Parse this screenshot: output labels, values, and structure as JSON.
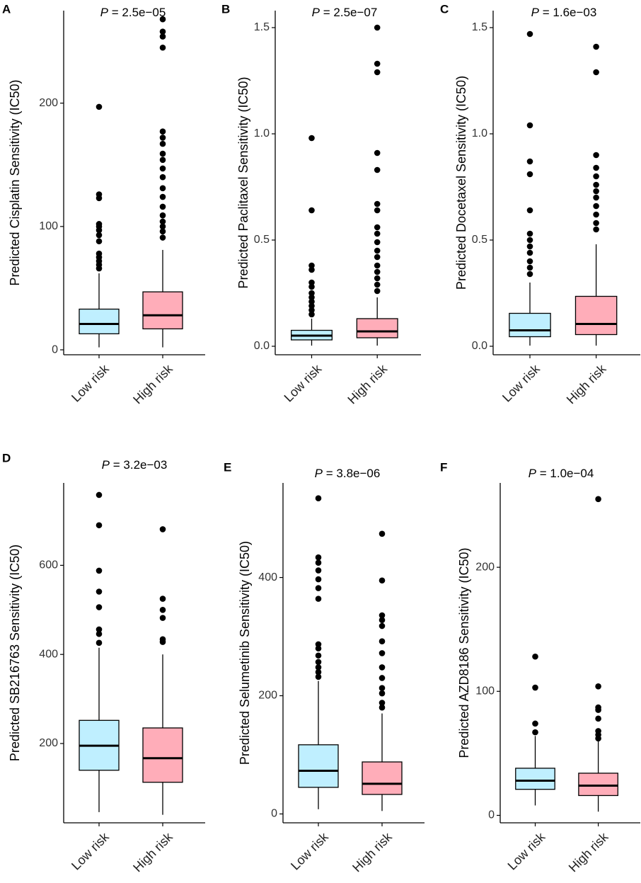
{
  "figure": {
    "low_color": "#bfefff",
    "high_color": "#ffadb9",
    "panels": [
      "A",
      "B",
      "C",
      "D",
      "E",
      "F"
    ]
  },
  "chart_data": [
    {
      "panel": "A",
      "type": "box",
      "title_p": "P",
      "title_value": " = 2.5e−05",
      "ylabel": "Predicted Cisplatin Sensitivity (IC50)",
      "categories": [
        "Low risk",
        "High risk"
      ],
      "ylim": [
        -4,
        275
      ],
      "yticks": [
        0,
        100,
        200
      ],
      "ytick_labels": [
        "0",
        "100",
        "200"
      ],
      "boxes": [
        {
          "name": "Low risk",
          "whisker_low": 2,
          "q1": 13,
          "median": 21,
          "q3": 33,
          "whisker_high": 62,
          "outliers": [
            66,
            69,
            72,
            75,
            78,
            88,
            93,
            97,
            100,
            102,
            123,
            126,
            197
          ]
        },
        {
          "name": "High risk",
          "whisker_low": 2,
          "q1": 17,
          "median": 28,
          "q3": 47,
          "whisker_high": 81,
          "outliers": [
            91,
            96,
            100,
            104,
            109,
            116,
            124,
            131,
            140,
            147,
            154,
            159,
            167,
            172,
            177,
            245,
            254,
            258,
            268
          ]
        }
      ]
    },
    {
      "panel": "B",
      "type": "box",
      "title_p": "P",
      "title_value": " = 2.5e−07",
      "ylabel": "Predicted Paclitaxel Sensitivity (IC50)",
      "categories": [
        "Low risk",
        "High risk"
      ],
      "ylim": [
        -0.04,
        1.58
      ],
      "yticks": [
        0,
        0.5,
        1,
        1.5
      ],
      "ytick_labels": [
        "0.0",
        "0.5",
        "1.0",
        "1.5"
      ],
      "boxes": [
        {
          "name": "Low risk",
          "whisker_low": 0.003,
          "q1": 0.03,
          "median": 0.05,
          "q3": 0.075,
          "whisker_high": 0.13,
          "outliers": [
            0.15,
            0.17,
            0.19,
            0.21,
            0.23,
            0.25,
            0.28,
            0.3,
            0.36,
            0.38,
            0.64,
            0.98
          ]
        },
        {
          "name": "High risk",
          "whisker_low": 0.003,
          "q1": 0.04,
          "median": 0.07,
          "q3": 0.13,
          "whisker_high": 0.23,
          "outliers": [
            0.26,
            0.29,
            0.32,
            0.35,
            0.38,
            0.42,
            0.45,
            0.49,
            0.53,
            0.56,
            0.64,
            0.67,
            0.83,
            0.91,
            1.29,
            1.33,
            1.5
          ]
        }
      ]
    },
    {
      "panel": "C",
      "type": "box",
      "title_p": "P",
      "title_value": " = 1.6e−03",
      "ylabel": "Predicted Docetaxel Sensitivity (IC50)",
      "categories": [
        "Low risk",
        "High risk"
      ],
      "ylim": [
        -0.04,
        1.58
      ],
      "yticks": [
        0,
        0.5,
        1,
        1.5
      ],
      "ytick_labels": [
        "0.0",
        "0.5",
        "1.0",
        "1.5"
      ],
      "boxes": [
        {
          "name": "Low risk",
          "whisker_low": 0.003,
          "q1": 0.045,
          "median": 0.075,
          "q3": 0.155,
          "whisker_high": 0.3,
          "outliers": [
            0.34,
            0.37,
            0.4,
            0.44,
            0.47,
            0.5,
            0.53,
            0.64,
            0.81,
            0.87,
            1.04,
            1.47
          ]
        },
        {
          "name": "High risk",
          "whisker_low": 0.003,
          "q1": 0.055,
          "median": 0.105,
          "q3": 0.235,
          "whisker_high": 0.48,
          "outliers": [
            0.55,
            0.58,
            0.62,
            0.66,
            0.7,
            0.73,
            0.76,
            0.8,
            0.84,
            0.9,
            1.29,
            1.41
          ]
        }
      ]
    },
    {
      "panel": "D",
      "type": "box",
      "title_p": "P",
      "title_value": " = 3.2e−03",
      "ylabel": "Predicted SB216763 Sensitivity (IC50)",
      "categories": [
        "Low risk",
        "High risk"
      ],
      "ylim": [
        22,
        785
      ],
      "yticks": [
        200,
        400,
        600
      ],
      "ytick_labels": [
        "200",
        "400",
        "600"
      ],
      "boxes": [
        {
          "name": "Low risk",
          "whisker_low": 46,
          "q1": 140,
          "median": 195,
          "q3": 252,
          "whisker_high": 415,
          "outliers": [
            426,
            446,
            456,
            506,
            541,
            588,
            690,
            758
          ]
        },
        {
          "name": "High risk",
          "whisker_low": 40,
          "q1": 113,
          "median": 167,
          "q3": 235,
          "whisker_high": 400,
          "outliers": [
            428,
            434,
            482,
            500,
            525,
            681
          ]
        }
      ]
    },
    {
      "panel": "E",
      "type": "box",
      "title_p": "P",
      "title_value": " = 3.8e−06",
      "ylabel": "Predicted Selumetinib Sensitivity (IC50)",
      "categories": [
        "Low risk",
        "High risk"
      ],
      "ylim": [
        -15,
        560
      ],
      "yticks": [
        0,
        200,
        400
      ],
      "ytick_labels": [
        "0",
        "200",
        "400"
      ],
      "boxes": [
        {
          "name": "Low risk",
          "whisker_low": 8,
          "q1": 45,
          "median": 73,
          "q3": 117,
          "whisker_high": 225,
          "outliers": [
            232,
            240,
            248,
            257,
            268,
            280,
            287,
            364,
            382,
            397,
            412,
            425,
            434,
            534
          ]
        },
        {
          "name": "High risk",
          "whisker_low": 5,
          "q1": 33,
          "median": 51,
          "q3": 88,
          "whisker_high": 170,
          "outliers": [
            180,
            188,
            204,
            213,
            230,
            248,
            272,
            292,
            318,
            328,
            336,
            395,
            474
          ]
        }
      ]
    },
    {
      "panel": "F",
      "type": "box",
      "title_p": "P",
      "title_value": " = 1.0e−04",
      "ylabel": "Predicted AZD8186 Sensitivity (IC50)",
      "categories": [
        "Low risk",
        "High risk"
      ],
      "ylim": [
        -6,
        268
      ],
      "yticks": [
        0,
        100,
        200
      ],
      "ytick_labels": [
        "0",
        "100",
        "200"
      ],
      "boxes": [
        {
          "name": "Low risk",
          "whisker_low": 8,
          "q1": 21,
          "median": 28,
          "q3": 38,
          "whisker_high": 64,
          "outliers": [
            67,
            74,
            103,
            128
          ]
        },
        {
          "name": "High risk",
          "whisker_low": 3,
          "q1": 16,
          "median": 24,
          "q3": 34,
          "whisker_high": 60,
          "outliers": [
            62,
            65,
            68,
            78,
            85,
            87,
            104,
            255
          ]
        }
      ]
    }
  ]
}
